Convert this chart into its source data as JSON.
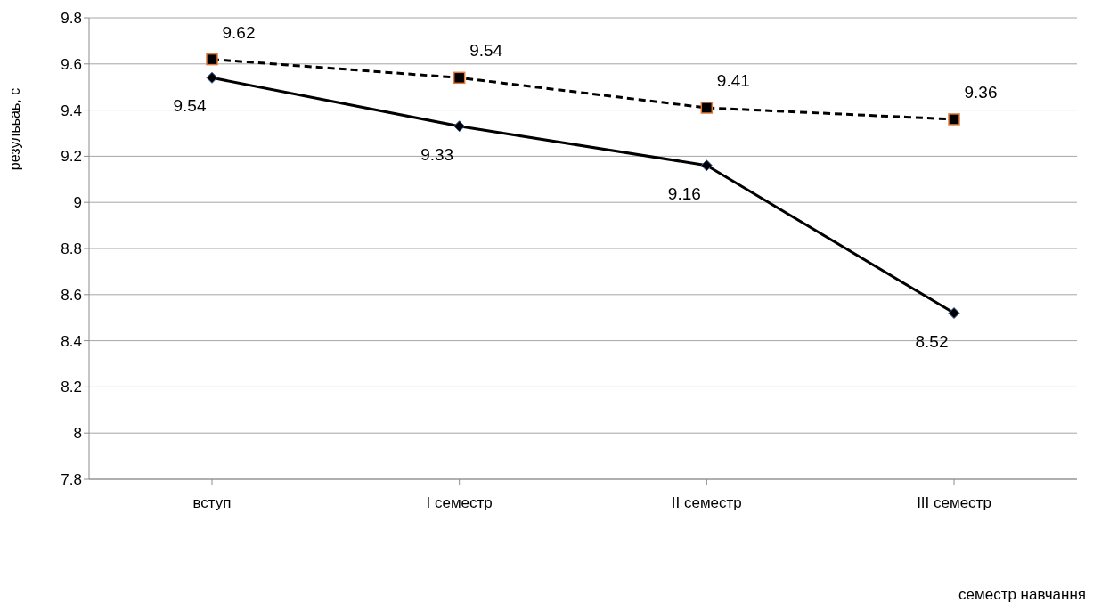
{
  "chart_data": {
    "type": "line",
    "xlabel": "семестр навчання",
    "ylabel": "резулььаь, с",
    "categories": [
      "вступ",
      "I семестр",
      "II семестр",
      "III семестр"
    ],
    "series": [
      {
        "color": "#000000",
        "values": [
          9.54,
          9.33,
          9.16,
          8.52
        ],
        "marker": "diamond",
        "line_style": "solid"
      },
      {
        "color": "#000000",
        "values": [
          9.62,
          9.54,
          9.41,
          9.36
        ],
        "marker": "square",
        "line_style": "dashed"
      }
    ],
    "ylim": [
      7.8,
      9.8
    ],
    "yticks": [
      7.8,
      8,
      8.2,
      8.4,
      8.6,
      8.8,
      9,
      9.2,
      9.4,
      9.6,
      9.8
    ],
    "grid": "y",
    "data_labels": true,
    "legend": false
  }
}
